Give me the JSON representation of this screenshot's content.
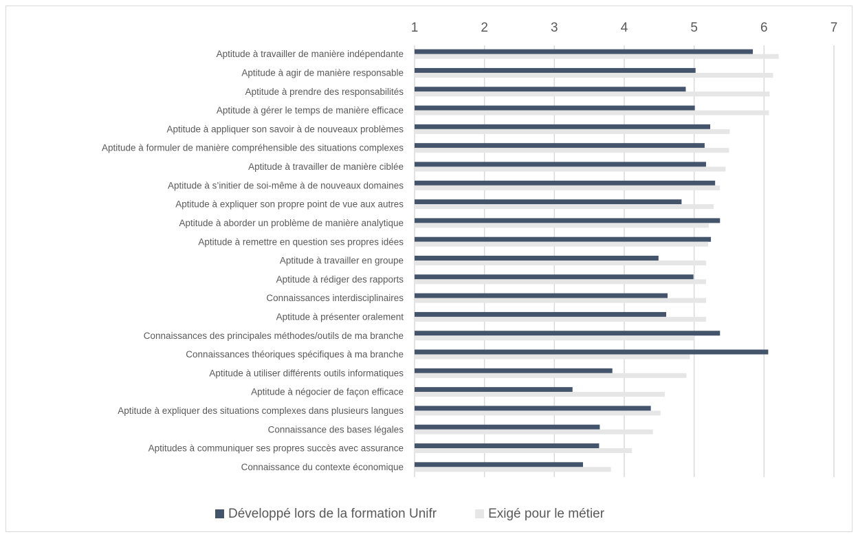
{
  "chart_data": {
    "type": "bar",
    "orientation": "horizontal",
    "categories": [
      "Aptitude à travailler de manière indépendante",
      "Aptitude à agir de manière responsable",
      "Aptitude à prendre des responsabilités",
      "Aptitude à gérer le temps de manière efficace",
      "Aptitude à appliquer son savoir à de nouveaux problèmes",
      "Aptitude à formuler de manière compréhensible des situations complexes",
      "Aptitude à travailler de manière ciblée",
      "Aptitude à s’initier de soi-même à de nouveaux domaines",
      "Aptitude à expliquer son propre point de vue aux autres",
      "Aptitude à aborder un problème de manière analytique",
      "Aptitude à remettre en question ses propres idées",
      "Aptitude à travailler en groupe",
      "Aptitude à rédiger des rapports",
      "Connaissances interdisciplinaires",
      "Aptitude à présenter oralement",
      "Connaissances des principales méthodes/outils de ma branche",
      "Connaissances théoriques spécifiques à ma branche",
      "Aptitude à utiliser différents outils informatiques",
      "Aptitude à négocier de façon efficace",
      "Aptitude à expliquer des situations complexes dans plusieurs langues",
      "Connaissance des bases légales",
      "Aptitudes à communiquer ses propres succès avec assurance",
      "Connaissance du contexte économique"
    ],
    "series": [
      {
        "name": "Développé lors de la formation Unifr",
        "color": "#44546a",
        "values": [
          5.84,
          5.02,
          4.88,
          5.01,
          5.23,
          5.15,
          5.17,
          5.3,
          4.82,
          5.37,
          5.24,
          4.49,
          4.99,
          4.62,
          4.6,
          5.37,
          6.06,
          3.83,
          3.26,
          4.38,
          3.65,
          3.64,
          3.41
        ]
      },
      {
        "name": "Exigé pour le métier",
        "color": "#e7e6e6",
        "values": [
          6.21,
          6.13,
          6.08,
          6.07,
          5.51,
          5.5,
          5.45,
          5.37,
          5.28,
          5.21,
          5.2,
          5.17,
          5.17,
          5.17,
          5.17,
          5.0,
          4.94,
          4.89,
          4.58,
          4.52,
          4.41,
          4.11,
          3.81
        ]
      }
    ],
    "xlim": [
      1,
      7
    ],
    "xticks": [
      1,
      2,
      3,
      4,
      5,
      6,
      7
    ],
    "grid": true,
    "legend": "bottom"
  }
}
